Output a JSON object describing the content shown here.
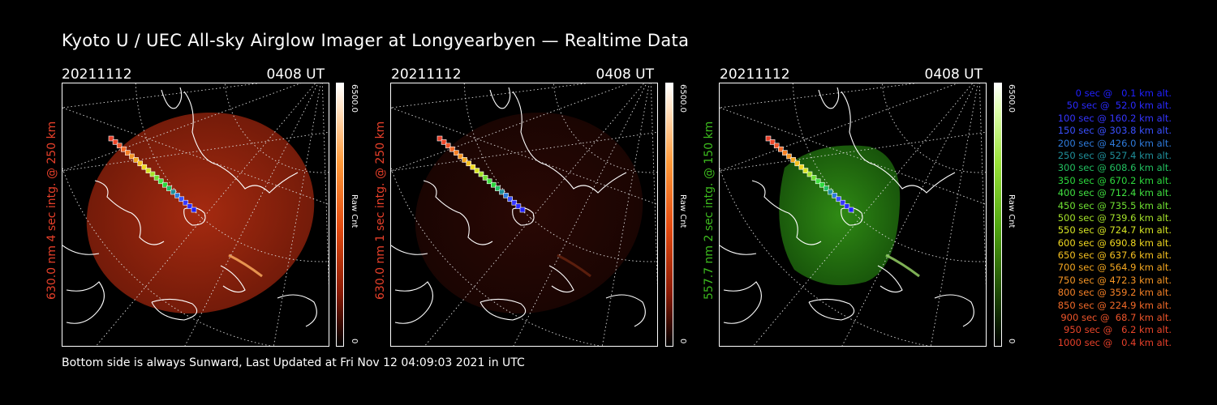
{
  "title": "Kyoto U / UEC All-sky Airglow Imager at Longyearbyen — Realtime Data",
  "footer": "Bottom side is always Sunward, Last Updated at Fri Nov 12 04:09:03 2021 in UTC",
  "colors": {
    "red_label": "#e8402a",
    "green_label": "#3dbb1e"
  },
  "panels": [
    {
      "date": "20211112",
      "time": "0408 UT",
      "label": "630.0 nm 4 sec intg. @ 250 km",
      "label_color": "#e8402a",
      "cbar_max": "6500.0",
      "cbar_min": "0",
      "cbar_title": "Raw Cnt",
      "scheme": "red"
    },
    {
      "date": "20211112",
      "time": "0408 UT",
      "label": "630.0 nm 1 sec intg. @ 250 km",
      "label_color": "#e8402a",
      "cbar_max": "6500.0",
      "cbar_min": "0",
      "cbar_title": "Raw Cnt",
      "scheme": "dimred"
    },
    {
      "date": "20211112",
      "time": "0408 UT",
      "label": "557.7 nm 2 sec intg. @ 150 km",
      "label_color": "#3dbb1e",
      "cbar_max": "6500.0",
      "cbar_min": "0",
      "cbar_title": "Raw Cnt",
      "scheme": "green"
    }
  ],
  "legend": [
    {
      "text": "0 sec @   0.1 km alt.",
      "color": "#2020ff"
    },
    {
      "text": "50 sec @  52.0 km alt.",
      "color": "#2a2aff"
    },
    {
      "text": "100 sec @ 160.2 km alt.",
      "color": "#3535ff"
    },
    {
      "text": "150 sec @ 303.8 km alt.",
      "color": "#3a50ff"
    },
    {
      "text": "200 sec @ 426.0 km alt.",
      "color": "#2e7bdc"
    },
    {
      "text": "250 sec @ 527.4 km alt.",
      "color": "#1f8f9a"
    },
    {
      "text": "300 sec @ 608.6 km alt.",
      "color": "#22c060"
    },
    {
      "text": "350 sec @ 670.2 km alt.",
      "color": "#2cd83c"
    },
    {
      "text": "400 sec @ 712.4 km alt.",
      "color": "#40e040"
    },
    {
      "text": "450 sec @ 735.5 km alt.",
      "color": "#6fe032"
    },
    {
      "text": "500 sec @ 739.6 km alt.",
      "color": "#a4e22a"
    },
    {
      "text": "550 sec @ 724.7 km alt.",
      "color": "#d6e423"
    },
    {
      "text": "600 sec @ 690.8 km alt.",
      "color": "#f0d820"
    },
    {
      "text": "650 sec @ 637.6 km alt.",
      "color": "#f5c020"
    },
    {
      "text": "700 sec @ 564.9 km alt.",
      "color": "#f5a820"
    },
    {
      "text": "750 sec @ 472.3 km alt.",
      "color": "#f59524"
    },
    {
      "text": "800 sec @ 359.2 km alt.",
      "color": "#f58026"
    },
    {
      "text": "850 sec @ 224.9 km alt.",
      "color": "#f26a28"
    },
    {
      "text": "900 sec @  68.7 km alt.",
      "color": "#ee552a"
    },
    {
      "text": "950 sec @   6.2 km alt.",
      "color": "#ea462a"
    },
    {
      "text": "1000 sec @   0.4 km alt.",
      "color": "#e8402a"
    }
  ]
}
